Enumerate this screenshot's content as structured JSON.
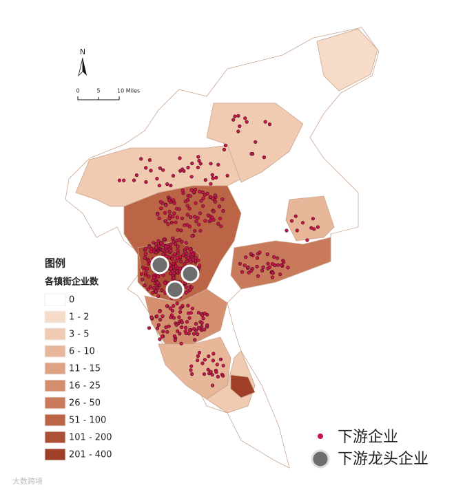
{
  "north_label": "N",
  "scale_bar": {
    "labels": [
      "0",
      "5",
      "10 Miles"
    ]
  },
  "legend": {
    "title": "图例",
    "subtitle": "各镇街企业数",
    "classes": [
      {
        "label": "0",
        "color": "#ffffff"
      },
      {
        "label": "1 - 2",
        "color": "#f6dcc8"
      },
      {
        "label": "3 - 5",
        "color": "#f0cbb1"
      },
      {
        "label": "6 - 10",
        "color": "#e8b79a"
      },
      {
        "label": "11 - 15",
        "color": "#dea384"
      },
      {
        "label": "16 - 25",
        "color": "#d48f6f"
      },
      {
        "label": "26 - 50",
        "color": "#c87a5a"
      },
      {
        "label": "51 - 100",
        "color": "#bb6446"
      },
      {
        "label": "101 - 200",
        "color": "#ae5035"
      },
      {
        "label": "201 - 400",
        "color": "#a03f28"
      }
    ]
  },
  "points_legend": [
    {
      "label": "下游企业",
      "color": "#c8174a"
    },
    {
      "label": "下游龙头企业",
      "color": "#6e6e6e"
    }
  ],
  "watermark": "大数跨境"
}
